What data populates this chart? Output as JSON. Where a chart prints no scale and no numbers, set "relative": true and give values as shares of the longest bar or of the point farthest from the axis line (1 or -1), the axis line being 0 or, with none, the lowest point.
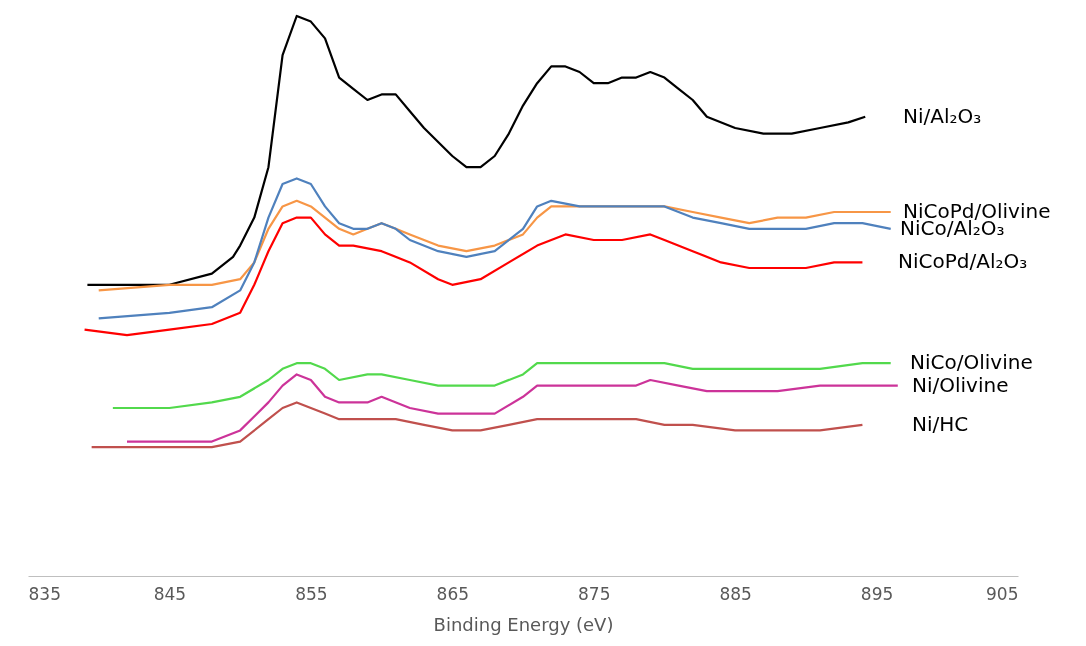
{
  "chart_data": {
    "type": "line",
    "relative": true,
    "xlabel": "Binding Energy (eV)",
    "xlim": [
      835,
      905
    ],
    "xticks": [
      835,
      845,
      855,
      865,
      875,
      885,
      895,
      905
    ],
    "grid": false,
    "legend": false,
    "marker": "none",
    "line_style": "solid",
    "series": [
      {
        "name": "Ni/Al₂O₃",
        "color": "#000000",
        "x": [
          839.2,
          842,
          845,
          848,
          849.5,
          850,
          851,
          852,
          853,
          854,
          855,
          856,
          857,
          858,
          859,
          860,
          861,
          862,
          863,
          865,
          866,
          867,
          868,
          869,
          870,
          871,
          872,
          873,
          874,
          875,
          876,
          877,
          878,
          879,
          880,
          881,
          882,
          883,
          885,
          887,
          889,
          891,
          893,
          894.2
        ],
        "values": [
          0.52,
          0.52,
          0.52,
          0.54,
          0.57,
          0.59,
          0.64,
          0.73,
          0.93,
          1.0,
          0.99,
          0.96,
          0.89,
          0.87,
          0.85,
          0.86,
          0.86,
          0.83,
          0.8,
          0.75,
          0.73,
          0.73,
          0.75,
          0.79,
          0.84,
          0.88,
          0.91,
          0.91,
          0.9,
          0.88,
          0.88,
          0.89,
          0.89,
          0.9,
          0.89,
          0.87,
          0.85,
          0.82,
          0.8,
          0.79,
          0.79,
          0.8,
          0.81,
          0.82
        ]
      },
      {
        "name": "NiCoPd/Olivine",
        "color": "#f79646",
        "x": [
          840,
          845,
          848,
          850,
          851,
          852,
          853,
          854,
          855,
          856,
          857,
          858,
          859,
          860,
          861,
          862,
          864,
          866,
          868,
          870,
          871,
          872,
          874,
          876,
          878,
          880,
          882,
          884,
          886,
          888,
          890,
          892,
          894,
          896
        ],
        "values": [
          0.51,
          0.52,
          0.52,
          0.53,
          0.56,
          0.62,
          0.66,
          0.67,
          0.66,
          0.64,
          0.62,
          0.61,
          0.62,
          0.63,
          0.62,
          0.61,
          0.59,
          0.58,
          0.59,
          0.61,
          0.64,
          0.66,
          0.66,
          0.66,
          0.66,
          0.66,
          0.65,
          0.64,
          0.63,
          0.64,
          0.64,
          0.65,
          0.65,
          0.65
        ]
      },
      {
        "name": "NiCo/Al₂O₃",
        "color": "#4f81bd",
        "x": [
          840,
          845,
          848,
          850,
          851,
          852,
          853,
          854,
          855,
          856,
          857,
          858,
          859,
          860,
          861,
          862,
          864,
          866,
          868,
          870,
          871,
          872,
          874,
          876,
          878,
          880,
          882,
          884,
          886,
          888,
          890,
          892,
          894,
          896
        ],
        "values": [
          0.46,
          0.47,
          0.48,
          0.51,
          0.56,
          0.64,
          0.7,
          0.71,
          0.7,
          0.66,
          0.63,
          0.62,
          0.62,
          0.63,
          0.62,
          0.6,
          0.58,
          0.57,
          0.58,
          0.62,
          0.66,
          0.67,
          0.66,
          0.66,
          0.66,
          0.66,
          0.64,
          0.63,
          0.62,
          0.62,
          0.62,
          0.63,
          0.63,
          0.62
        ]
      },
      {
        "name": "NiCoPd/Al₂O₃",
        "color": "#ff0000",
        "x": [
          839,
          842,
          845,
          848,
          850,
          851,
          852,
          853,
          854,
          855,
          856,
          857,
          858,
          860,
          862,
          864,
          865,
          867,
          869,
          871,
          873,
          875,
          877,
          879,
          880,
          882,
          884,
          886,
          888,
          890,
          892,
          894
        ],
        "values": [
          0.44,
          0.43,
          0.44,
          0.45,
          0.47,
          0.52,
          0.58,
          0.63,
          0.64,
          0.64,
          0.61,
          0.59,
          0.59,
          0.58,
          0.56,
          0.53,
          0.52,
          0.53,
          0.56,
          0.59,
          0.61,
          0.6,
          0.6,
          0.61,
          0.6,
          0.58,
          0.56,
          0.55,
          0.55,
          0.55,
          0.56,
          0.56
        ]
      },
      {
        "name": "NiCo/Olivine",
        "color": "#52d94c",
        "x": [
          841,
          845,
          848,
          850,
          852,
          853,
          854,
          855,
          856,
          857,
          859,
          860,
          862,
          864,
          866,
          868,
          870,
          871,
          873,
          875,
          878,
          880,
          882,
          885,
          888,
          891,
          894,
          896
        ],
        "values": [
          0.3,
          0.3,
          0.31,
          0.32,
          0.35,
          0.37,
          0.38,
          0.38,
          0.37,
          0.35,
          0.36,
          0.36,
          0.35,
          0.34,
          0.34,
          0.34,
          0.36,
          0.38,
          0.38,
          0.38,
          0.38,
          0.38,
          0.37,
          0.37,
          0.37,
          0.37,
          0.38,
          0.38
        ]
      },
      {
        "name": "Ni/Olivine",
        "color": "#cc3399",
        "x": [
          842,
          845,
          848,
          850,
          852,
          853,
          854,
          855,
          856,
          857,
          859,
          860,
          862,
          864,
          866,
          868,
          870,
          871,
          873,
          875,
          878,
          879,
          881,
          883,
          885,
          888,
          891,
          894,
          896.5
        ],
        "values": [
          0.24,
          0.24,
          0.24,
          0.26,
          0.31,
          0.34,
          0.36,
          0.35,
          0.32,
          0.31,
          0.31,
          0.32,
          0.3,
          0.29,
          0.29,
          0.29,
          0.32,
          0.34,
          0.34,
          0.34,
          0.34,
          0.35,
          0.34,
          0.33,
          0.33,
          0.33,
          0.34,
          0.34,
          0.34
        ]
      },
      {
        "name": "Ni/HC",
        "color": "#c0504d",
        "x": [
          839.5,
          842,
          845,
          848,
          850,
          852,
          853,
          854,
          855,
          856,
          857,
          859,
          861,
          863,
          865,
          867,
          869,
          871,
          873,
          876,
          878,
          880,
          882,
          885,
          888,
          891,
          894
        ],
        "values": [
          0.23,
          0.23,
          0.23,
          0.23,
          0.24,
          0.28,
          0.3,
          0.31,
          0.3,
          0.29,
          0.28,
          0.28,
          0.28,
          0.27,
          0.26,
          0.26,
          0.27,
          0.28,
          0.28,
          0.28,
          0.28,
          0.27,
          0.27,
          0.26,
          0.26,
          0.26,
          0.27
        ]
      }
    ]
  }
}
